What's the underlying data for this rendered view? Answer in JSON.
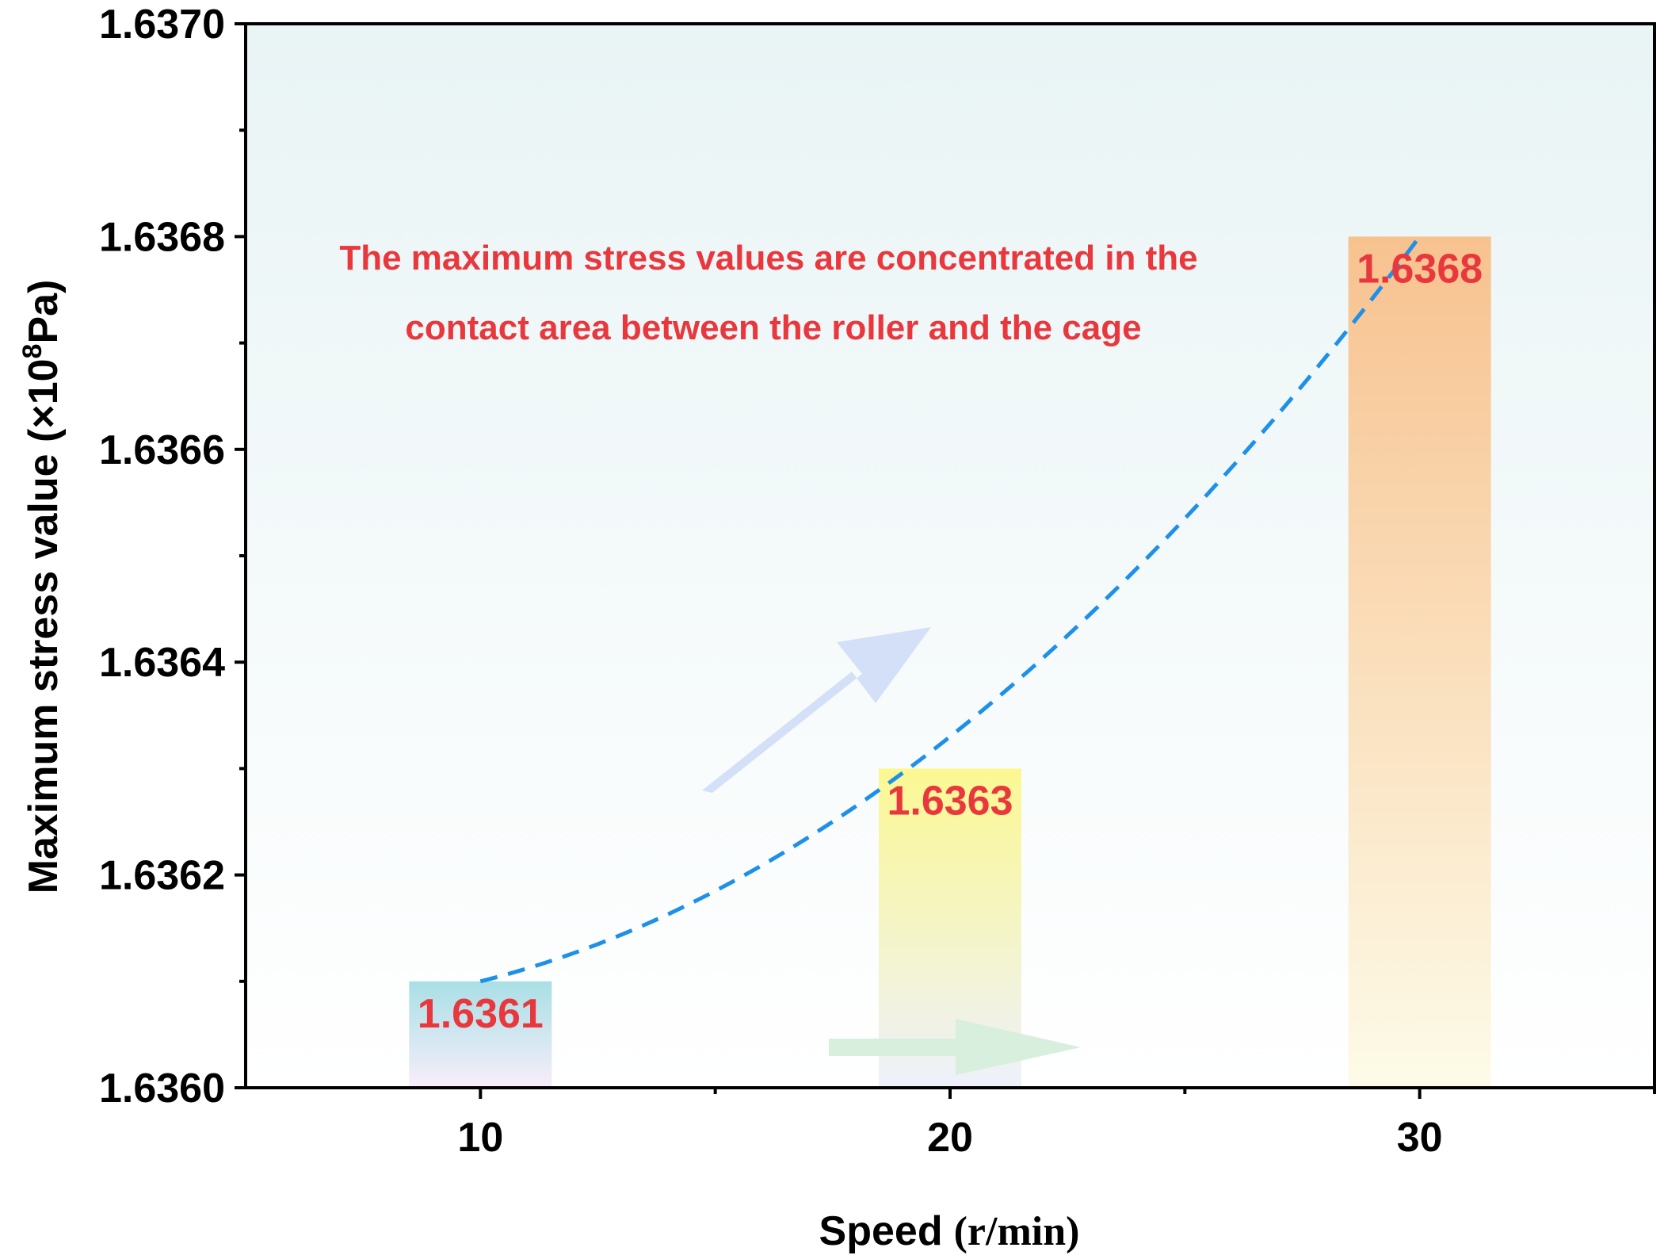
{
  "chart_data": {
    "type": "bar",
    "title": "",
    "xlabel_main": "Speed",
    "xlabel_unit": "(r/min)",
    "ylabel_main": "Maximum stress value (×10",
    "ylabel_sup": "8",
    "ylabel_end": "Pa)",
    "categories": [
      "10",
      "20",
      "30"
    ],
    "x": [
      10,
      20,
      30
    ],
    "values": [
      1.6361,
      1.6363,
      1.6368
    ],
    "data_labels": [
      "1.6361",
      "1.6363",
      "1.6368"
    ],
    "xlim": [
      5,
      35
    ],
    "ylim": [
      1.636,
      1.637
    ],
    "y_ticks": [
      "1.6360",
      "1.6362",
      "1.6364",
      "1.6366",
      "1.6368",
      "1.6370"
    ],
    "y_tick_values": [
      1.636,
      1.6362,
      1.6364,
      1.6366,
      1.6368,
      1.637
    ],
    "x_ticks": [
      "10",
      "20",
      "30"
    ],
    "trend_line": {
      "style": "dashed",
      "x": [
        10,
        20,
        30
      ],
      "values": [
        1.6361,
        1.63633,
        1.6368
      ]
    },
    "annotation_lines": [
      "The maximum stress values are concentrated in the",
      "contact area between the roller and the cage"
    ],
    "colors": {
      "bar_10_top": "#a9dfe6",
      "bar_10_bottom": "#f8eefa",
      "bar_20_top": "#fbf892",
      "bar_20_bottom": "#eef1fb",
      "bar_30_top": "#f7c28f",
      "bar_30_bottom": "#fdfbe8",
      "label": "#e8383d",
      "trend": "#1e90e8",
      "arrow_up": "#d3e0f7",
      "arrow_right": "#d9efdd",
      "background_top": "#e9f4f5",
      "background_bottom": "#ffffff"
    }
  }
}
